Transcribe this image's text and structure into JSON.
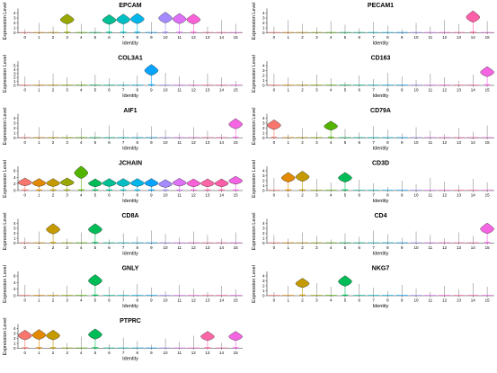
{
  "chart_data": {
    "type": "violin",
    "layout": "grid 7 rows x 2 columns",
    "xlabel": "Identity",
    "ylabel": "Expression Level",
    "categories": [
      "0",
      "1",
      "2",
      "3",
      "4",
      "5",
      "6",
      "7",
      "8",
      "9",
      "10",
      "11",
      "12",
      "13",
      "14",
      "15"
    ],
    "colors": [
      "#F8766D",
      "#E38900",
      "#C49A00",
      "#99A800",
      "#53B400",
      "#00BC56",
      "#00C094",
      "#00BFC4",
      "#00B6EB",
      "#06A4FF",
      "#A58AFF",
      "#DF70F8",
      "#FB61D7",
      "#FF66A8",
      "#FF5FA8",
      "#F564E3"
    ],
    "panels": [
      {
        "title": "EPCAM",
        "yticks": [
          "0",
          "1",
          "2",
          "3",
          "4"
        ],
        "ymax": 4,
        "values": [
          0,
          0,
          0,
          2.7,
          0,
          0,
          2.6,
          2.7,
          2.8,
          0,
          3.0,
          2.8,
          2.7,
          0,
          0,
          0
        ]
      },
      {
        "title": "PECAM1",
        "yticks": [
          "0",
          "1",
          "2",
          "3",
          "4"
        ],
        "ymax": 4,
        "values": [
          0,
          0,
          0,
          0,
          0,
          0,
          0,
          0,
          0,
          0,
          0,
          0,
          0,
          0,
          3.2,
          0
        ]
      },
      {
        "title": "COL3A1",
        "yticks": [
          "0",
          "1",
          "2",
          "3",
          "4",
          "5"
        ],
        "ymax": 5,
        "values": [
          0,
          0,
          0,
          0,
          0,
          0,
          0,
          0,
          0,
          3.8,
          0,
          0,
          0,
          0,
          0,
          0
        ]
      },
      {
        "title": "CD163",
        "yticks": [
          "0",
          "1",
          "2",
          "3",
          "4"
        ],
        "ymax": 4,
        "values": [
          0,
          0,
          0,
          0,
          0,
          0,
          0,
          0,
          0,
          0,
          0,
          0,
          0,
          0,
          0,
          2.7
        ]
      },
      {
        "title": "AIF1",
        "yticks": [
          "0",
          "1",
          "2",
          "3",
          "4"
        ],
        "ymax": 4,
        "values": [
          0,
          0,
          0,
          0,
          0,
          0,
          0,
          0,
          0,
          0,
          0,
          0,
          0,
          0,
          0,
          2.8
        ]
      },
      {
        "title": "CD79A",
        "yticks": [
          "0",
          "1",
          "2",
          "3",
          "4"
        ],
        "ymax": 4,
        "values": [
          2.6,
          0,
          0,
          0,
          2.4,
          0,
          0,
          0,
          0,
          0,
          0,
          0,
          0,
          0,
          0,
          0
        ]
      },
      {
        "title": "JCHAIN",
        "yticks": [
          "0",
          "2",
          "4",
          "6"
        ],
        "ymax": 6,
        "values": [
          2.5,
          2.3,
          2.3,
          2.5,
          5.4,
          2.2,
          2.3,
          2.3,
          2.3,
          2.3,
          2.0,
          2.4,
          2.2,
          2.2,
          2.2,
          3.0
        ]
      },
      {
        "title": "CD3D",
        "yticks": [
          "0",
          "1",
          "2",
          "3",
          "4"
        ],
        "ymax": 4,
        "values": [
          0,
          2.6,
          2.8,
          0,
          0,
          2.6,
          0,
          0,
          0,
          0,
          0,
          0,
          0,
          0,
          0,
          0
        ]
      },
      {
        "title": "CD8A",
        "yticks": [
          "0",
          "1",
          "2",
          "3",
          "4"
        ],
        "ymax": 4,
        "values": [
          0,
          0,
          2.8,
          0,
          0,
          2.8,
          0,
          0,
          0,
          0,
          0,
          0,
          0,
          0,
          0,
          0
        ]
      },
      {
        "title": "CD4",
        "yticks": [
          "0",
          "1",
          "2",
          "3",
          "4"
        ],
        "ymax": 4,
        "values": [
          0,
          0,
          0,
          0,
          0,
          0,
          0,
          0,
          0,
          0,
          0,
          0,
          0,
          0,
          0,
          2.9
        ]
      },
      {
        "title": "GNLY",
        "yticks": [
          "0",
          "2",
          "4",
          "6"
        ],
        "ymax": 6,
        "values": [
          0,
          0,
          0,
          0,
          0,
          4.6,
          0,
          0,
          0,
          0,
          0,
          0,
          0,
          0,
          0,
          0
        ]
      },
      {
        "title": "NKG7",
        "yticks": [
          "0",
          "1",
          "2",
          "3",
          "4"
        ],
        "ymax": 4,
        "values": [
          0,
          0,
          2.5,
          0,
          0,
          2.9,
          0,
          0,
          0,
          0,
          0,
          0,
          0,
          0,
          0,
          0
        ]
      },
      {
        "title": "PTPRC",
        "yticks": [
          "0",
          "1",
          "2",
          "3",
          "4"
        ],
        "ymax": 4,
        "values": [
          2.6,
          2.7,
          2.6,
          0,
          0,
          2.8,
          0,
          0,
          0,
          0,
          0,
          0,
          0,
          2.4,
          0,
          2.4
        ]
      }
    ]
  }
}
